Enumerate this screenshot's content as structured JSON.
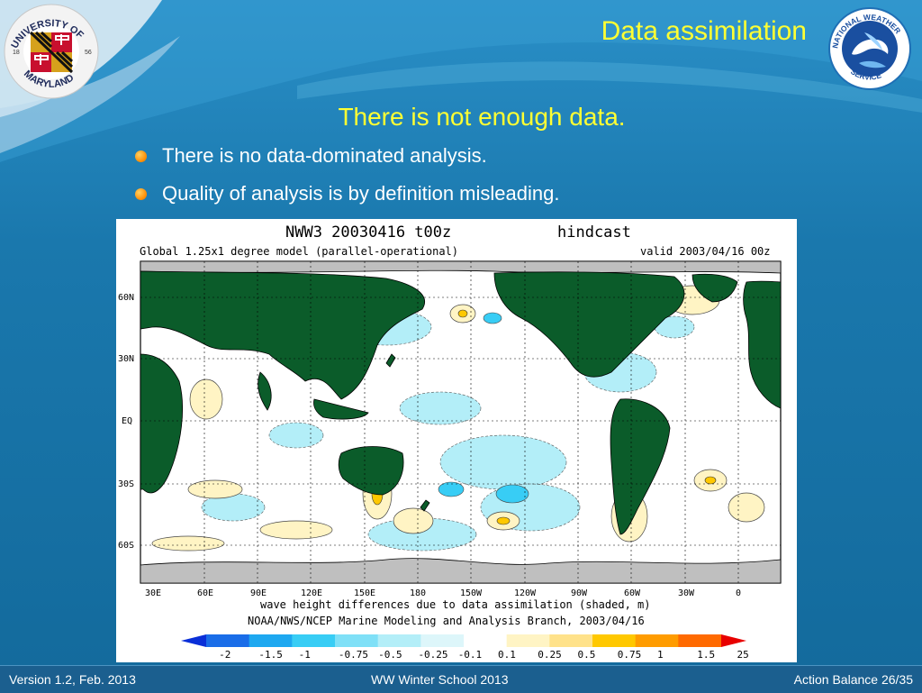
{
  "slide": {
    "title": "Data assimilation",
    "subtitle": "There is not enough data.",
    "bullets": [
      "There is no data-dominated analysis.",
      "Quality of analysis is by definition misleading."
    ]
  },
  "logos": {
    "left": {
      "name": "University of Maryland seal",
      "text": "UNIVERSITY OF MARYLAND",
      "years": [
        "18",
        "56"
      ]
    },
    "right": {
      "name": "National Weather Service logo",
      "text": "NATIONAL WEATHER SERVICE"
    }
  },
  "figure": {
    "header_left": "NWW3 20030416 t00z",
    "header_right": "hindcast",
    "model": "Global 1.25x1 degree model (parallel-operational)",
    "valid": "valid 2003/04/16 00z",
    "lat_labels": [
      "60N",
      "30N",
      "EQ",
      "30S",
      "60S"
    ],
    "lon_labels": [
      "30E",
      "60E",
      "90E",
      "120E",
      "150E",
      "180",
      "150W",
      "120W",
      "90W",
      "60W",
      "30W",
      "0"
    ],
    "caption1": "wave height differences due to data assimilation (shaded, m)",
    "caption2": "NOAA/NWS/NCEP Marine Modeling and Analysis Branch, 2003/04/16",
    "colorbar": {
      "labels": [
        "-2",
        "-1.5",
        "-1",
        "-0.75",
        "-0.5",
        "-0.25",
        "-0.1",
        "0.1",
        "0.25",
        "0.5",
        "0.75",
        "1",
        "1.5",
        "25"
      ],
      "colors": [
        "#0a2fd8",
        "#1a6de8",
        "#1ea8f0",
        "#38cdf5",
        "#7fe0f7",
        "#b3eef8",
        "#ddf6fa",
        "#ffffff",
        "#fff4c4",
        "#ffe28a",
        "#ffc800",
        "#ff9c00",
        "#ff6a00",
        "#e80000"
      ]
    }
  },
  "footer": {
    "left": "Version 1.2, Feb. 2013",
    "center": "WW Winter School 2013",
    "right": "Action Balance 26/35"
  }
}
